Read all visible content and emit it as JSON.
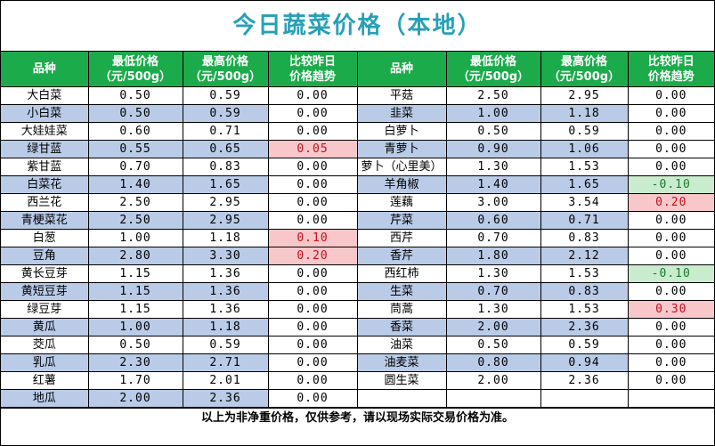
{
  "title": "今日蔬菜价格（本地）",
  "header": {
    "left": [
      "品种",
      "最低价格\n（元/500g）",
      "最高价格\n（元/500g）",
      "比较昨日\n价格趋势"
    ],
    "right": [
      "品种",
      "最低价格\n（元/500g）",
      "最高价格\n（元/500g）",
      "比较昨日\n价格趋势"
    ]
  },
  "rows": [
    {
      "l": [
        "大白菜",
        "0.50",
        "0.59",
        "0.00"
      ],
      "r": [
        "平菇",
        "2.50",
        "2.95",
        "0.00"
      ]
    },
    {
      "l": [
        "小白菜",
        "0.50",
        "0.59",
        "0.00"
      ],
      "r": [
        "韭菜",
        "1.00",
        "1.18",
        "0.00"
      ]
    },
    {
      "l": [
        "大娃娃菜",
        "0.60",
        "0.71",
        "0.00"
      ],
      "r": [
        "白萝卜",
        "0.50",
        "0.59",
        "0.00"
      ]
    },
    {
      "l": [
        "绿甘蓝",
        "0.55",
        "0.65",
        "0.05"
      ],
      "r": [
        "青萝卜",
        "0.90",
        "1.06",
        "0.00"
      ]
    },
    {
      "l": [
        "紫甘蓝",
        "0.70",
        "0.83",
        "0.00"
      ],
      "r": [
        "萝卜（心里美）",
        "1.30",
        "1.53",
        "0.00"
      ]
    },
    {
      "l": [
        "白菜花",
        "1.40",
        "1.65",
        "0.00"
      ],
      "r": [
        "羊角椒",
        "1.40",
        "1.65",
        "-0.10"
      ]
    },
    {
      "l": [
        "西兰花",
        "2.50",
        "2.95",
        "0.00"
      ],
      "r": [
        "莲藕",
        "3.00",
        "3.54",
        "0.20"
      ]
    },
    {
      "l": [
        "青梗菜花",
        "2.50",
        "2.95",
        "0.00"
      ],
      "r": [
        "芹菜",
        "0.60",
        "0.71",
        "0.00"
      ]
    },
    {
      "l": [
        "白葱",
        "1.00",
        "1.18",
        "0.10"
      ],
      "r": [
        "西芹",
        "0.70",
        "0.83",
        "0.00"
      ]
    },
    {
      "l": [
        "豆角",
        "2.80",
        "3.30",
        "0.20"
      ],
      "r": [
        "香芹",
        "1.80",
        "2.12",
        "0.00"
      ]
    },
    {
      "l": [
        "黄长豆芽",
        "1.15",
        "1.36",
        "0.00"
      ],
      "r": [
        "西红柿",
        "1.30",
        "1.53",
        "-0.10"
      ]
    },
    {
      "l": [
        "黄短豆芽",
        "1.15",
        "1.36",
        "0.00"
      ],
      "r": [
        "生菜",
        "0.70",
        "0.83",
        "0.00"
      ]
    },
    {
      "l": [
        "绿豆芽",
        "1.15",
        "1.36",
        "0.00"
      ],
      "r": [
        "茼蒿",
        "1.30",
        "1.53",
        "0.30"
      ]
    },
    {
      "l": [
        "黄瓜",
        "1.00",
        "1.18",
        "0.00"
      ],
      "r": [
        "香菜",
        "2.00",
        "2.36",
        "0.00"
      ]
    },
    {
      "l": [
        "茭瓜",
        "0.50",
        "0.59",
        "0.00"
      ],
      "r": [
        "油菜",
        "0.50",
        "0.59",
        "0.00"
      ]
    },
    {
      "l": [
        "乳瓜",
        "2.30",
        "2.71",
        "0.00"
      ],
      "r": [
        "油麦菜",
        "0.80",
        "0.94",
        "0.00"
      ]
    },
    {
      "l": [
        "红薯",
        "1.70",
        "2.01",
        "0.00"
      ],
      "r": [
        "圆生菜",
        "2.00",
        "2.36",
        "0.00"
      ]
    },
    {
      "l": [
        "地瓜",
        "2.00",
        "2.36",
        "0.00"
      ],
      "r": [
        "",
        "",
        "",
        ""
      ]
    }
  ],
  "footer": "以上为非净重价格，仅供参考，请以现场实际交易价格为准。",
  "colors": {
    "title": "#27a0b7",
    "header_bg": "#1cab4b",
    "band_blue": "#b9cbe7",
    "up_bg": "#f7c7ca",
    "down_bg": "#c9ecce"
  }
}
